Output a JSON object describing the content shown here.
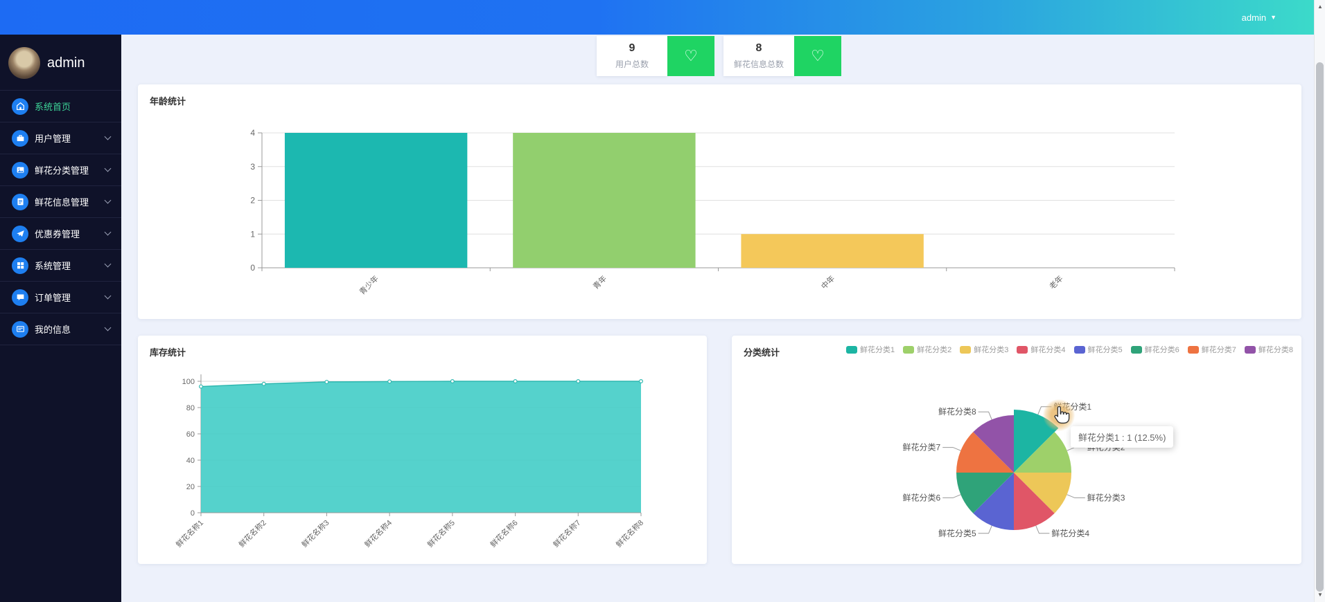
{
  "header": {
    "user": "admin"
  },
  "icons": {
    "caret_down": "▼",
    "scroll_up": "▲",
    "scroll_down": "▼",
    "heart": "♡"
  },
  "sidebar": {
    "username": "admin",
    "items": [
      {
        "label": "系统首页",
        "icon": "home-icon",
        "active": true,
        "has_submenu": false
      },
      {
        "label": "用户管理",
        "icon": "briefcase-icon",
        "active": false,
        "has_submenu": true
      },
      {
        "label": "鲜花分类管理",
        "icon": "image-icon",
        "active": false,
        "has_submenu": true
      },
      {
        "label": "鲜花信息管理",
        "icon": "document-icon",
        "active": false,
        "has_submenu": true
      },
      {
        "label": "优惠券管理",
        "icon": "paper-plane-icon",
        "active": false,
        "has_submenu": true
      },
      {
        "label": "系统管理",
        "icon": "grid-icon",
        "active": false,
        "has_submenu": true
      },
      {
        "label": "订单管理",
        "icon": "chat-icon",
        "active": false,
        "has_submenu": true
      },
      {
        "label": "我的信息",
        "icon": "id-card-icon",
        "active": false,
        "has_submenu": true
      }
    ]
  },
  "stats_cards": [
    {
      "value": "9",
      "label": "用户总数",
      "icon": "heart-icon",
      "accent": "#1fd463"
    },
    {
      "value": "8",
      "label": "鲜花信息总数",
      "icon": "heart-icon",
      "accent": "#1fd463"
    }
  ],
  "cards": {
    "age": {
      "title": "年龄统计"
    },
    "stock": {
      "title": "库存统计"
    },
    "category": {
      "title": "分类统计"
    }
  },
  "chart_data": [
    {
      "type": "bar",
      "title": "年龄统计",
      "categories": [
        "青少年",
        "青年",
        "中年",
        "老年"
      ],
      "values": [
        4,
        4,
        1,
        0
      ],
      "bar_colors": [
        "#1cb8b0",
        "#92cf6e",
        "#f4c85a",
        "#e05667"
      ],
      "xlabel": "",
      "ylabel": "",
      "ylim": [
        0,
        4
      ],
      "yticks": [
        0,
        1,
        2,
        3,
        4
      ],
      "grid": true,
      "x_label_rotation": 45
    },
    {
      "type": "area",
      "title": "库存统计",
      "categories": [
        "鲜花名称1",
        "鲜花名称2",
        "鲜花名称3",
        "鲜花名称4",
        "鲜花名称5",
        "鲜花名称6",
        "鲜花名称7",
        "鲜花名称8"
      ],
      "values": [
        96,
        98,
        99.5,
        99.8,
        100,
        100,
        100,
        100
      ],
      "line_color": "#2fb8b0",
      "fill_color": "#46cec8",
      "xlabel": "",
      "ylabel": "",
      "ylim": [
        0,
        100
      ],
      "yticks": [
        0,
        20,
        40,
        60,
        80,
        100
      ],
      "grid": true,
      "x_label_rotation": 45
    },
    {
      "type": "pie",
      "title": "分类统计",
      "labels": [
        "鲜花分类1",
        "鲜花分类2",
        "鲜花分类3",
        "鲜花分类4",
        "鲜花分类5",
        "鲜花分类6",
        "鲜花分类7",
        "鲜花分类8"
      ],
      "values": [
        1,
        1,
        1,
        1,
        1,
        1,
        1,
        1
      ],
      "percent_each": "12.5%",
      "colors": [
        "#1cb5a3",
        "#9ed06a",
        "#edc758",
        "#e05667",
        "#5a64d2",
        "#2fa379",
        "#ee7341",
        "#9253a8"
      ],
      "legend_position": "top-right",
      "hovered_slice": "鲜花分类1",
      "tooltip": "鲜花分类1 : 1 (12.5%)"
    }
  ],
  "colors": {
    "header_gradient_start": "#1d6bf3",
    "header_gradient_end": "#3cdcc9",
    "sidebar_bg": "#0f1229",
    "sidebar_active_text": "#3dd598",
    "menu_icon_bg": "#1e7ff0",
    "stat_green": "#1fd463",
    "page_bg": "#edf1fb"
  }
}
